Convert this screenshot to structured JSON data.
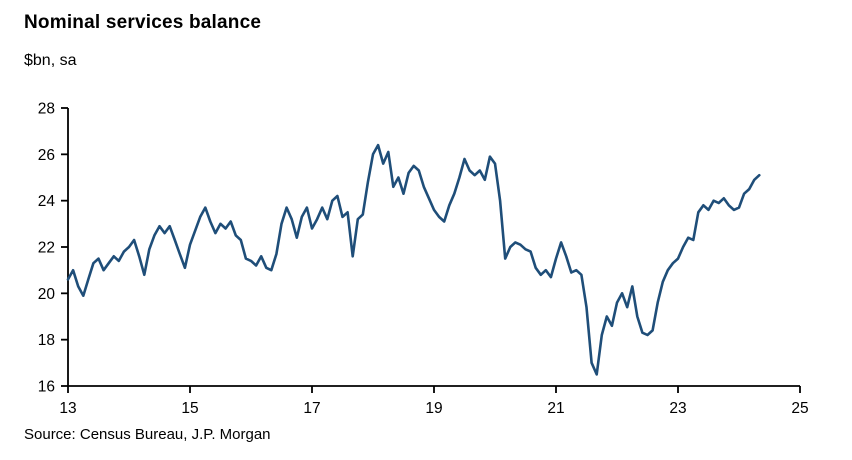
{
  "title": "Nominal services balance",
  "subtitle": "$bn, sa",
  "source": "Source: Census Bureau, J.P. Morgan",
  "colors": {
    "line": "#1F4E79",
    "axis": "#000000",
    "background": "#FFFFFF"
  },
  "chart_data": {
    "type": "line",
    "title": "Nominal services balance",
    "ylabel": "$bn, sa",
    "xlabel": "",
    "grid": false,
    "legend": "none",
    "xlim": [
      2013,
      2025
    ],
    "ylim": [
      16,
      28
    ],
    "x_ticks": [
      "13",
      "15",
      "17",
      "19",
      "21",
      "23",
      "25"
    ],
    "x_tick_years": [
      2013,
      2015,
      2017,
      2019,
      2021,
      2023,
      2025
    ],
    "y_ticks": [
      16,
      18,
      20,
      22,
      24,
      26,
      28
    ],
    "frequency": "monthly",
    "x_start": 2013.0,
    "series": [
      {
        "name": "Nominal services balance ($bn, sa)",
        "values": [
          20.6,
          21.0,
          20.3,
          19.9,
          20.6,
          21.3,
          21.5,
          21.0,
          21.3,
          21.6,
          21.4,
          21.8,
          22.0,
          22.3,
          21.6,
          20.8,
          21.9,
          22.5,
          22.9,
          22.6,
          22.9,
          22.3,
          21.7,
          21.1,
          22.1,
          22.7,
          23.3,
          23.7,
          23.1,
          22.6,
          23.0,
          22.8,
          23.1,
          22.5,
          22.3,
          21.5,
          21.4,
          21.2,
          21.6,
          21.1,
          21.0,
          21.7,
          23.0,
          23.7,
          23.2,
          22.4,
          23.3,
          23.7,
          22.8,
          23.2,
          23.7,
          23.2,
          24.0,
          24.2,
          23.3,
          23.5,
          21.6,
          23.2,
          23.4,
          24.8,
          26.0,
          26.4,
          25.6,
          26.1,
          24.6,
          25.0,
          24.3,
          25.2,
          25.5,
          25.3,
          24.6,
          24.1,
          23.6,
          23.3,
          23.1,
          23.8,
          24.3,
          25.0,
          25.8,
          25.3,
          25.1,
          25.3,
          24.9,
          25.9,
          25.6,
          24.0,
          21.5,
          22.0,
          22.2,
          22.1,
          21.9,
          21.8,
          21.1,
          20.8,
          21.0,
          20.7,
          21.5,
          22.2,
          21.6,
          20.9,
          21.0,
          20.8,
          19.4,
          17.0,
          16.5,
          18.2,
          19.0,
          18.6,
          19.6,
          20.0,
          19.4,
          20.3,
          19.0,
          18.3,
          18.2,
          18.4,
          19.6,
          20.5,
          21.0,
          21.3,
          21.5,
          22.0,
          22.4,
          22.3,
          23.5,
          23.8,
          23.6,
          24.0,
          23.9,
          24.1,
          23.8,
          23.6,
          23.7,
          24.3,
          24.5,
          24.9,
          25.1
        ]
      }
    ]
  }
}
